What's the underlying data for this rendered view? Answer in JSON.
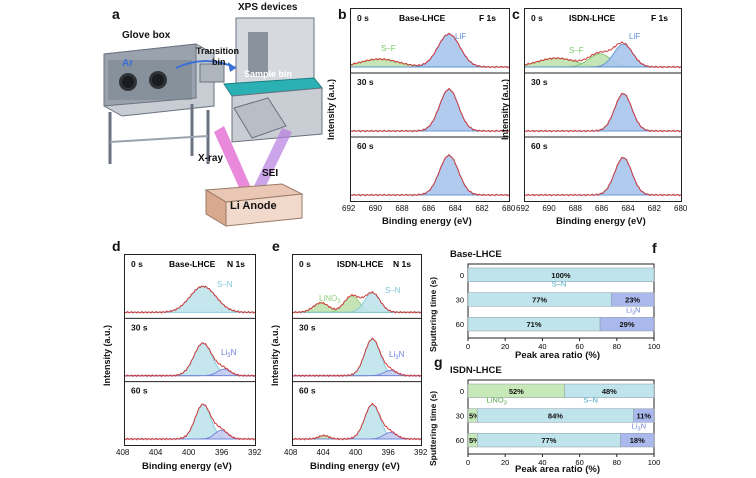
{
  "panels": {
    "a": {
      "letter": "a",
      "labels": {
        "glove_box": "Glove box",
        "xps_devices": "XPS devices",
        "ar": "Ar",
        "transition_bin_1": "Transition",
        "transition_bin_2": "bin",
        "sample_bin": "Sample bin",
        "xray": "X-ray",
        "sei": "SEI",
        "li_anode": "Li Anode"
      }
    },
    "b": {
      "letter": "b",
      "title": "Base-LHCE",
      "element": "F 1s",
      "times": [
        "0 s",
        "30 s",
        "60 s"
      ],
      "peak_labels": {
        "sf": "S–F",
        "lif": "LiF"
      },
      "ylabel": "Intensity (a.u.)",
      "xlabel": "Binding energy (eV)",
      "ticks": [
        "692",
        "690",
        "688",
        "686",
        "684",
        "682",
        "680"
      ]
    },
    "c": {
      "letter": "c",
      "title": "ISDN-LHCE",
      "element": "F 1s",
      "times": [
        "0 s",
        "30 s",
        "60 s"
      ],
      "peak_labels": {
        "sf": "S–F",
        "lif": "LiF"
      },
      "ylabel": "Intensity (a.u.)",
      "xlabel": "Binding energy (eV)",
      "ticks": [
        "692",
        "690",
        "688",
        "686",
        "684",
        "682",
        "680"
      ]
    },
    "d": {
      "letter": "d",
      "title": "Base-LHCE",
      "element": "N 1s",
      "times": [
        "0 s",
        "30 s",
        "60 s"
      ],
      "peak_labels": {
        "sn": "S–N",
        "li3n": "Li",
        "li3n_sub": "3",
        "li3n_end": "N"
      },
      "ylabel": "Intensity (a.u.)",
      "xlabel": "Binding energy (eV)",
      "ticks": [
        "408",
        "404",
        "400",
        "396",
        "392"
      ]
    },
    "e": {
      "letter": "e",
      "title": "ISDN-LHCE",
      "element": "N 1s",
      "times": [
        "0 s",
        "30 s",
        "60 s"
      ],
      "peak_labels": {
        "sn": "S–N",
        "lino3": "LiNO",
        "lino3_sub": "3",
        "li3n": "Li",
        "li3n_sub": "3",
        "li3n_end": "N"
      },
      "ylabel": "Intensity (a.u.)",
      "xlabel": "Binding energy (eV)",
      "ticks": [
        "408",
        "404",
        "400",
        "396",
        "392"
      ]
    },
    "f": {
      "letter": "f",
      "title": "Base-LHCE",
      "ylabel": "Sputtering time (s)",
      "xlabel": "Peak area ratio (%)",
      "xticks": [
        "0",
        "20",
        "40",
        "60",
        "80",
        "100"
      ],
      "yticks": [
        "0",
        "30",
        "60"
      ],
      "sn_label": "S–N",
      "li3n_label": "Li",
      "li3n_sub": "3",
      "li3n_end": "N",
      "bars": [
        {
          "time": "0",
          "sn": 100,
          "li3n": 0,
          "sn_text": "100%",
          "li3n_text": ""
        },
        {
          "time": "30",
          "sn": 77,
          "li3n": 23,
          "sn_text": "77%",
          "li3n_text": "23%"
        },
        {
          "time": "60",
          "sn": 71,
          "li3n": 29,
          "sn_text": "71%",
          "li3n_text": "29%"
        }
      ]
    },
    "g": {
      "letter": "g",
      "title": "ISDN-LHCE",
      "ylabel": "Sputtering time (s)",
      "xlabel": "Peak area ratio (%)",
      "xticks": [
        "0",
        "20",
        "40",
        "60",
        "80",
        "100"
      ],
      "yticks": [
        "0",
        "30",
        "60"
      ],
      "sn_label": "S–N",
      "lino3_label": "LiNO",
      "lino3_sub": "3",
      "li3n_label": "Li",
      "li3n_sub": "3",
      "li3n_end": "N",
      "bars": [
        {
          "time": "0",
          "lino3": 52,
          "sn": 48,
          "li3n": 0,
          "lino3_text": "52%",
          "sn_text": "48%",
          "li3n_text": ""
        },
        {
          "time": "30",
          "lino3": 5,
          "sn": 84,
          "li3n": 11,
          "lino3_text": "5%",
          "sn_text": "84%",
          "li3n_text": "11%"
        },
        {
          "time": "60",
          "lino3": 5,
          "sn": 77,
          "li3n": 18,
          "lino3_text": "5%",
          "sn_text": "77%",
          "li3n_text": "18%"
        }
      ]
    }
  },
  "colors": {
    "lif": "#5b8fd6",
    "lif_fill": "#a9c6ee",
    "sf": "#7cc46a",
    "sf_fill": "#bfe3b0",
    "sn": "#7fc8d8",
    "sn_fill": "#bfe4ec",
    "li3n": "#6f7fd8",
    "lino3": "#8fd07a",
    "envelope": "#d23c3c",
    "raw": "#4b6fa8"
  },
  "chart_data": [
    {
      "type": "bar",
      "title": "Base-LHCE",
      "xlabel": "Peak area ratio (%)",
      "ylabel": "Sputtering time (s)",
      "categories": [
        "0",
        "30",
        "60"
      ],
      "series": [
        {
          "name": "S–N",
          "values": [
            100,
            77,
            71
          ]
        },
        {
          "name": "Li3N",
          "values": [
            0,
            23,
            29
          ]
        }
      ],
      "xlim": [
        0,
        100
      ]
    },
    {
      "type": "bar",
      "title": "ISDN-LHCE",
      "xlabel": "Peak area ratio (%)",
      "ylabel": "Sputtering time (s)",
      "categories": [
        "0",
        "30",
        "60"
      ],
      "series": [
        {
          "name": "LiNO3",
          "values": [
            52,
            5,
            5
          ]
        },
        {
          "name": "S–N",
          "values": [
            48,
            84,
            77
          ]
        },
        {
          "name": "Li3N",
          "values": [
            0,
            11,
            18
          ]
        }
      ],
      "xlim": [
        0,
        100
      ]
    }
  ]
}
